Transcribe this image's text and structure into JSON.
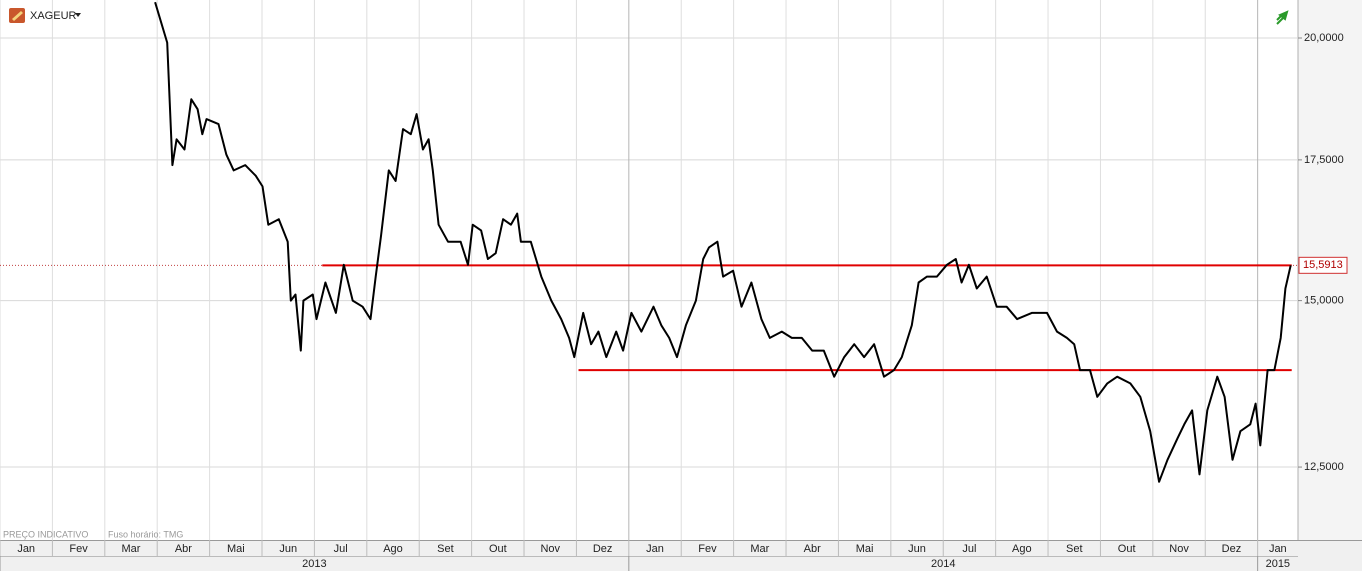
{
  "header": {
    "symbol": "XAGEUR"
  },
  "footer": {
    "note": "PREÇO INDICATIVO",
    "timezone": "Fuso horário: TMG"
  },
  "chart_data": {
    "type": "line",
    "log_scale": true,
    "grid": true,
    "color": "#000000",
    "x": [
      2.96,
      3.19,
      3.29,
      3.37,
      3.52,
      3.65,
      3.77,
      3.86,
      3.94,
      4.17,
      4.32,
      4.46,
      4.68,
      4.88,
      5.01,
      5.12,
      5.32,
      5.49,
      5.55,
      5.64,
      5.74,
      5.79,
      5.97,
      6.04,
      6.21,
      6.41,
      6.56,
      6.73,
      6.92,
      7.07,
      7.17,
      7.27,
      7.42,
      7.55,
      7.69,
      7.84,
      7.95,
      8.07,
      8.18,
      8.26,
      8.37,
      8.55,
      8.79,
      8.93,
      9.02,
      9.18,
      9.31,
      9.46,
      9.6,
      9.75,
      9.87,
      9.94,
      10.13,
      10.33,
      10.52,
      10.71,
      10.86,
      10.96,
      11.13,
      11.28,
      11.42,
      11.57,
      11.76,
      11.89,
      12.05,
      12.24,
      12.47,
      12.62,
      12.77,
      12.92,
      13.09,
      13.28,
      13.42,
      13.53,
      13.69,
      13.8,
      13.99,
      14.15,
      14.34,
      14.53,
      14.69,
      14.92,
      15.11,
      15.3,
      15.5,
      15.72,
      15.92,
      16.11,
      16.3,
      16.49,
      16.68,
      16.87,
      17.06,
      17.21,
      17.4,
      17.53,
      17.69,
      17.88,
      18.07,
      18.24,
      18.35,
      18.49,
      18.64,
      18.83,
      19.02,
      19.21,
      19.41,
      19.69,
      19.98,
      20.17,
      20.36,
      20.5,
      20.61,
      20.8,
      20.94,
      21.13,
      21.32,
      21.57,
      21.76,
      21.95,
      22.12,
      22.28,
      22.47,
      22.6,
      22.75,
      22.89,
      23.04,
      23.23,
      23.37,
      23.52,
      23.67,
      23.86,
      23.96,
      24.05,
      24.19,
      24.32,
      24.44,
      24.53,
      24.63
    ],
    "values": [
      20.8,
      19.9,
      17.4,
      17.9,
      17.7,
      18.7,
      18.5,
      18.0,
      18.3,
      18.2,
      17.6,
      17.3,
      17.4,
      17.2,
      17.0,
      16.3,
      16.4,
      16.0,
      15.0,
      15.1,
      14.2,
      15.0,
      15.1,
      14.7,
      15.3,
      14.8,
      15.6,
      15.0,
      14.9,
      14.7,
      15.4,
      16.1,
      17.3,
      17.1,
      18.1,
      18.0,
      18.4,
      17.7,
      17.9,
      17.3,
      16.3,
      16.0,
      16.0,
      15.6,
      16.3,
      16.2,
      15.7,
      15.8,
      16.4,
      16.3,
      16.5,
      16.0,
      16.0,
      15.4,
      15.0,
      14.7,
      14.4,
      14.1,
      14.8,
      14.3,
      14.5,
      14.1,
      14.5,
      14.2,
      14.8,
      14.5,
      14.9,
      14.6,
      14.4,
      14.1,
      14.6,
      15.0,
      15.7,
      15.9,
      16.0,
      15.4,
      15.5,
      14.9,
      15.3,
      14.7,
      14.4,
      14.5,
      14.4,
      14.4,
      14.2,
      14.2,
      13.8,
      14.1,
      14.3,
      14.1,
      14.3,
      13.8,
      13.9,
      14.1,
      14.6,
      15.3,
      15.4,
      15.4,
      15.6,
      15.7,
      15.3,
      15.6,
      15.2,
      15.4,
      14.9,
      14.9,
      14.7,
      14.8,
      14.8,
      14.5,
      14.4,
      14.3,
      13.9,
      13.9,
      13.5,
      13.7,
      13.8,
      13.7,
      13.5,
      13.0,
      12.3,
      12.6,
      12.9,
      13.1,
      13.3,
      12.4,
      13.3,
      13.8,
      13.5,
      12.6,
      13.0,
      13.1,
      13.4,
      12.8,
      13.9,
      13.9,
      14.4,
      15.2,
      15.5913
    ],
    "last_value_label": "15,5913",
    "xlim": [
      0,
      24.77
    ],
    "xticks": [
      {
        "value": 0,
        "label": "Jan"
      },
      {
        "value": 1,
        "label": "Fev"
      },
      {
        "value": 2,
        "label": "Mar"
      },
      {
        "value": 3,
        "label": "Abr"
      },
      {
        "value": 4,
        "label": "Mai"
      },
      {
        "value": 5,
        "label": "Jun"
      },
      {
        "value": 6,
        "label": "Jul"
      },
      {
        "value": 7,
        "label": "Ago"
      },
      {
        "value": 8,
        "label": "Set"
      },
      {
        "value": 9,
        "label": "Out"
      },
      {
        "value": 10,
        "label": "Nov"
      },
      {
        "value": 11,
        "label": "Dez"
      },
      {
        "value": 12,
        "label": "Jan"
      },
      {
        "value": 13,
        "label": "Fev"
      },
      {
        "value": 14,
        "label": "Mar"
      },
      {
        "value": 15,
        "label": "Abr"
      },
      {
        "value": 16,
        "label": "Mai"
      },
      {
        "value": 17,
        "label": "Jun"
      },
      {
        "value": 18,
        "label": "Jul"
      },
      {
        "value": 19,
        "label": "Ago"
      },
      {
        "value": 20,
        "label": "Set"
      },
      {
        "value": 21,
        "label": "Out"
      },
      {
        "value": 22,
        "label": "Nov"
      },
      {
        "value": 23,
        "label": "Dez"
      },
      {
        "value": 24,
        "label": "Jan"
      }
    ],
    "year_ticks": [
      {
        "value": 0,
        "label": "2013"
      },
      {
        "value": 12,
        "label": "2014"
      },
      {
        "value": 24,
        "label": "2015"
      }
    ],
    "ylim": [
      11.54,
      20.85
    ],
    "yticks": [
      {
        "value": 12.5,
        "label": "12,5000"
      },
      {
        "value": 15,
        "label": "15,0000"
      },
      {
        "value": 17.5,
        "label": "17,5000"
      },
      {
        "value": 20,
        "label": "20,0000"
      }
    ],
    "levels": [
      {
        "y": 15.5913,
        "x": [
          6.15,
          24.65
        ],
        "color": "#e00000"
      },
      {
        "y": 13.9,
        "x": [
          11.04,
          24.65
        ],
        "color": "#e00000"
      }
    ]
  }
}
